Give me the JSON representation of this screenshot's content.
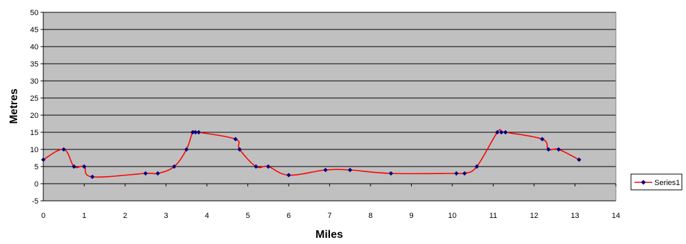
{
  "chart_data": {
    "type": "line",
    "xlabel": "Miles",
    "ylabel": "Metres",
    "xlim": [
      0,
      14
    ],
    "ylim": [
      -5,
      50
    ],
    "xticks": [
      0,
      1,
      2,
      3,
      4,
      5,
      6,
      7,
      8,
      9,
      10,
      11,
      12,
      13,
      14
    ],
    "yticks": [
      -5,
      0,
      5,
      10,
      15,
      20,
      25,
      30,
      35,
      40,
      45,
      50
    ],
    "grid": true,
    "legend_position": "right",
    "smooth": true,
    "colors": {
      "plot_background": "#c0c0c0",
      "gridline": "#000000",
      "line": "#ff0000",
      "marker": "#000080"
    },
    "series": [
      {
        "name": "Series1",
        "x": [
          0,
          0.5,
          0.75,
          1.0,
          1.2,
          2.5,
          2.8,
          3.2,
          3.5,
          3.65,
          3.72,
          3.8,
          4.7,
          4.8,
          5.2,
          5.5,
          6.0,
          6.9,
          7.5,
          8.5,
          10.1,
          10.3,
          10.6,
          11.1,
          11.2,
          11.3,
          12.2,
          12.35,
          12.6,
          13.1
        ],
        "y": [
          7,
          10,
          5,
          5,
          2,
          3,
          3,
          5,
          10,
          15,
          15,
          15,
          13,
          10,
          5,
          5,
          2.5,
          4,
          4,
          3,
          3,
          3,
          5,
          15,
          15,
          15,
          13,
          10,
          10,
          7
        ]
      }
    ]
  }
}
